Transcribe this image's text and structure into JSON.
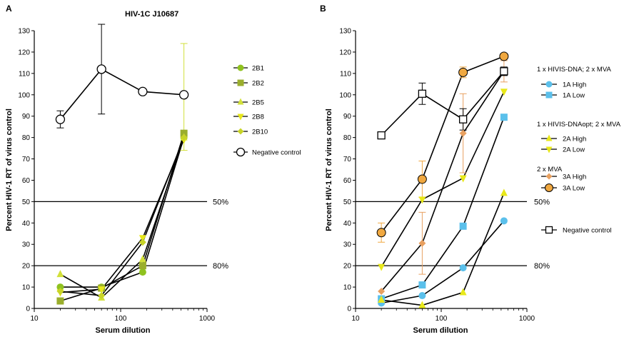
{
  "chart_data": [
    {
      "type": "line",
      "panel": "A",
      "title": "HIV-1C J10687",
      "xlabel": "Serum dilution",
      "ylabel": "Percent HIV-1 RT of virus control",
      "xscale": "log",
      "xlim": [
        10,
        1000
      ],
      "ylim": [
        0,
        130
      ],
      "xticks": [
        "10",
        "100",
        "1000"
      ],
      "yticks": [
        "0",
        "10",
        "20",
        "30",
        "40",
        "50",
        "60",
        "70",
        "80",
        "90",
        "100",
        "110",
        "120",
        "130"
      ],
      "reference_lines": [
        {
          "y": 50,
          "label": "50%"
        },
        {
          "y": 20,
          "label": "80%"
        }
      ],
      "legend_position": "right",
      "series": [
        {
          "name": "2B1",
          "marker": "circle",
          "color": "#8fc21f",
          "x": [
            20,
            60,
            180,
            540
          ],
          "y": [
            10,
            10,
            17,
            80
          ]
        },
        {
          "name": "2B2",
          "marker": "square",
          "color": "#9aae2c",
          "x": [
            20,
            60,
            180,
            540
          ],
          "y": [
            3.5,
            9.5,
            20,
            82
          ]
        },
        {
          "name": "2B5",
          "marker": "triangle-up",
          "color": "#d2e03a",
          "x": [
            20,
            60,
            180,
            540
          ],
          "y": [
            16,
            5,
            23,
            80
          ]
        },
        {
          "name": "2B8",
          "marker": "triangle-down",
          "color": "#e8e81a",
          "x": [
            20,
            60,
            180,
            540
          ],
          "y": [
            7.5,
            9,
            33,
            79
          ]
        },
        {
          "name": "2B10",
          "marker": "diamond",
          "color": "#c8d428",
          "x": [
            20,
            60,
            180,
            540
          ],
          "y": [
            8,
            6,
            31,
            80
          ]
        },
        {
          "name": "Negative control",
          "marker": "open-circle",
          "color": "#000000",
          "x": [
            20,
            60,
            180,
            540
          ],
          "y": [
            88.5,
            112,
            101.5,
            100
          ],
          "err": [
            4,
            21,
            0,
            0
          ]
        }
      ],
      "error_bar_2B": {
        "x": 540,
        "y": 99,
        "err_low": 25,
        "err_high": 25,
        "color": "#d2e03a"
      }
    },
    {
      "type": "line",
      "panel": "B",
      "title": "",
      "xlabel": "Serum dilution",
      "ylabel": "Percent HIV-1 RT of virus control",
      "xscale": "log",
      "xlim": [
        10,
        1000
      ],
      "ylim": [
        0,
        130
      ],
      "xticks": [
        "10",
        "100",
        "1000"
      ],
      "yticks": [
        "0",
        "10",
        "20",
        "30",
        "40",
        "50",
        "60",
        "70",
        "80",
        "90",
        "100",
        "110",
        "120",
        "130"
      ],
      "reference_lines": [
        {
          "y": 50,
          "label": "50%"
        },
        {
          "y": 20,
          "label": "80%"
        }
      ],
      "legend_position": "right",
      "legend_groups": [
        {
          "title": "1 x HIVIS-DNA; 2 x MVA",
          "items": [
            "1A High",
            "1A Low"
          ]
        },
        {
          "title": "1 x HIVIS-DNAopt; 2 x MVA",
          "items": [
            "2A High",
            "2A Low"
          ]
        },
        {
          "title": "2 x MVA",
          "items": [
            "3A High",
            "3A Low"
          ]
        },
        {
          "title": "",
          "items": [
            "Negative control"
          ]
        }
      ],
      "series": [
        {
          "name": "1A High",
          "marker": "circle",
          "color": "#5bc0eb",
          "x": [
            20,
            60,
            180,
            540
          ],
          "y": [
            2.5,
            6,
            19,
            41
          ]
        },
        {
          "name": "1A Low",
          "marker": "square",
          "color": "#5bc0eb",
          "x": [
            20,
            60,
            180,
            540
          ],
          "y": [
            4.5,
            11,
            38.5,
            89.5
          ]
        },
        {
          "name": "2A High",
          "marker": "triangle-up",
          "color": "#e8e81a",
          "x": [
            20,
            60,
            180,
            540
          ],
          "y": [
            4,
            1.5,
            7.5,
            54
          ]
        },
        {
          "name": "2A Low",
          "marker": "triangle-down",
          "color": "#e8e81a",
          "x": [
            20,
            60,
            180,
            540
          ],
          "y": [
            19.5,
            51,
            61,
            101.5
          ]
        },
        {
          "name": "3A High",
          "marker": "diamond",
          "color": "#e8a060",
          "x": [
            20,
            60,
            180,
            540
          ],
          "y": [
            8,
            30.5,
            82,
            111
          ],
          "err": [
            0,
            14.5,
            18.5,
            5
          ]
        },
        {
          "name": "3A Low",
          "marker": "circle-large",
          "color": "#f0a840",
          "x": [
            20,
            60,
            180,
            540
          ],
          "y": [
            35.5,
            60.5,
            110.5,
            118
          ],
          "err": [
            4.5,
            8.5,
            2.5,
            0
          ]
        },
        {
          "name": "Negative control",
          "marker": "open-square",
          "color": "#000000",
          "x": [
            20,
            60,
            180,
            540
          ],
          "y": [
            81,
            100.5,
            88.5,
            111
          ],
          "err": [
            0,
            5,
            5,
            2
          ]
        }
      ]
    }
  ]
}
